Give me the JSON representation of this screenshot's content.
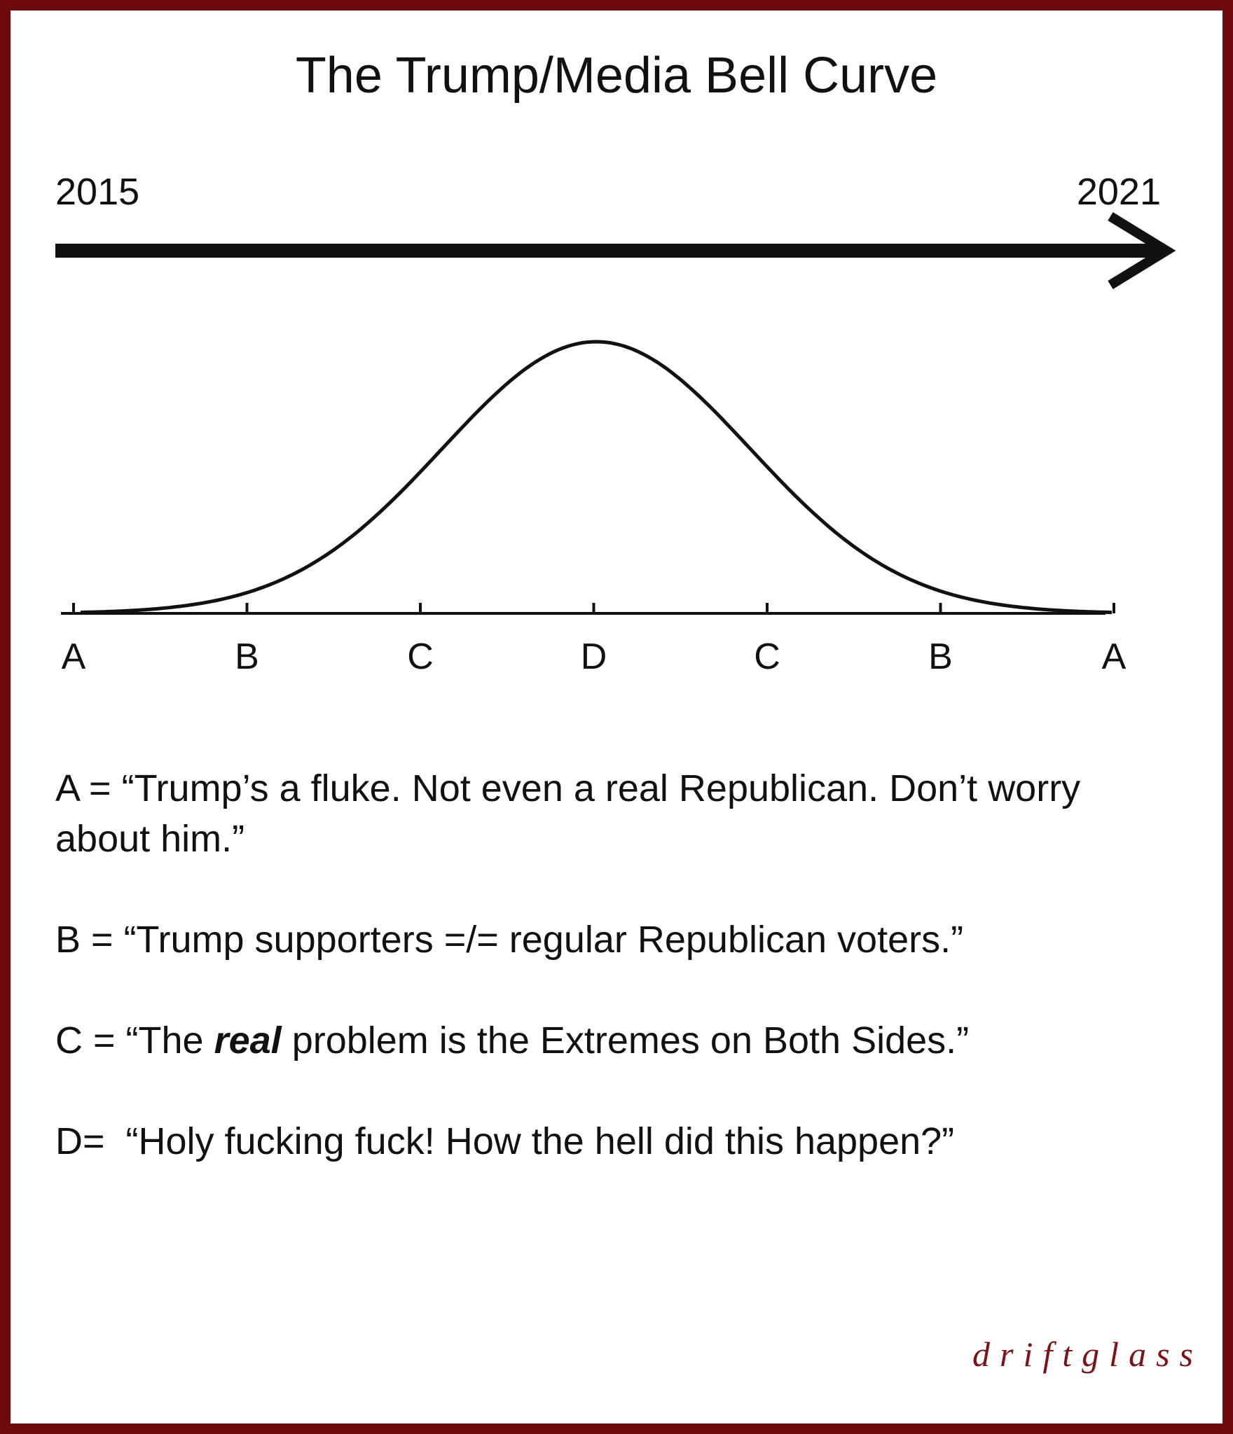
{
  "title": "The Trump/Media Bell Curve",
  "timeline": {
    "start_label": "2015",
    "end_label": "2021"
  },
  "axis_labels": [
    "A",
    "B",
    "C",
    "D",
    "C",
    "B",
    "A"
  ],
  "definitions": [
    {
      "label": "A = ",
      "pre": "“Trump’s a fluke.  Not even a real Republican.  Don’t worry about him.”",
      "em": "",
      "post": ""
    },
    {
      "label": "B = ",
      "pre": "“Trump supporters =/= regular Republican voters.”",
      "em": "",
      "post": ""
    },
    {
      "label": "C = ",
      "pre": "“The ",
      "em": "real",
      "post": " problem is the Extremes on Both Sides.”"
    },
    {
      "label": "D=  ",
      "pre": "“Holy fucking fuck!  How the hell did this happen?”",
      "em": "",
      "post": ""
    }
  ],
  "signature": "driftglass",
  "colors": {
    "frame": "#6e0a0c",
    "ink": "#111111",
    "signature": "#7a1418"
  }
}
